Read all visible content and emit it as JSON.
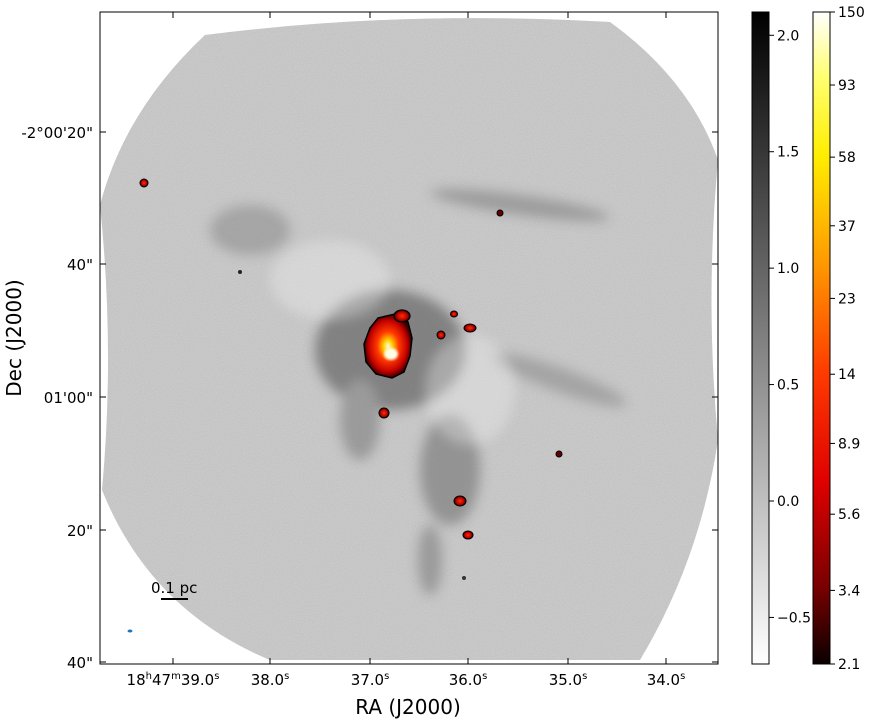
{
  "chart_data": {
    "type": "heatmap",
    "title": "",
    "xlabel": "RA (J2000)",
    "ylabel": "Dec (J2000)",
    "x_ticks": [
      {
        "h": "18",
        "m": "47",
        "s": "39.0"
      },
      {
        "h": "",
        "m": "",
        "s": "38.0"
      },
      {
        "h": "",
        "m": "",
        "s": "37.0"
      },
      {
        "h": "",
        "m": "",
        "s": "36.0"
      },
      {
        "h": "",
        "m": "",
        "s": "35.0"
      },
      {
        "h": "",
        "m": "",
        "s": "34.0"
      }
    ],
    "y_ticks": [
      "-2°00'20\"",
      "40\"",
      "01'00\"",
      "20\"",
      "40\""
    ],
    "scalebar_label": "0.1 pc",
    "colorbars": [
      {
        "name": "grayscale",
        "colormap": "gray_r",
        "range": [
          -0.7,
          2.1
        ],
        "ticks": [
          2.0,
          1.5,
          1.0,
          0.5,
          0.0,
          -0.5
        ],
        "tick_labels": [
          "2.0",
          "1.5",
          "1.0",
          "0.5",
          "0.0",
          "−0.5"
        ]
      },
      {
        "name": "hot",
        "colormap": "hot",
        "range": [
          2.1,
          150
        ],
        "ticks": [
          150,
          93,
          58,
          37,
          23,
          14,
          8.9,
          5.6,
          3.4,
          2.1
        ],
        "tick_labels": [
          "150",
          "93",
          "58",
          "37",
          "23",
          "14",
          "8.9",
          "5.6",
          "3.4",
          "2.1"
        ]
      }
    ],
    "colors": {
      "map_bg": "#bdbdbd",
      "bright_core": "#ffffe0",
      "hot_mid": "#ff2a00",
      "hot_dark": "#5a0000",
      "beam": "#1f77b4"
    }
  }
}
